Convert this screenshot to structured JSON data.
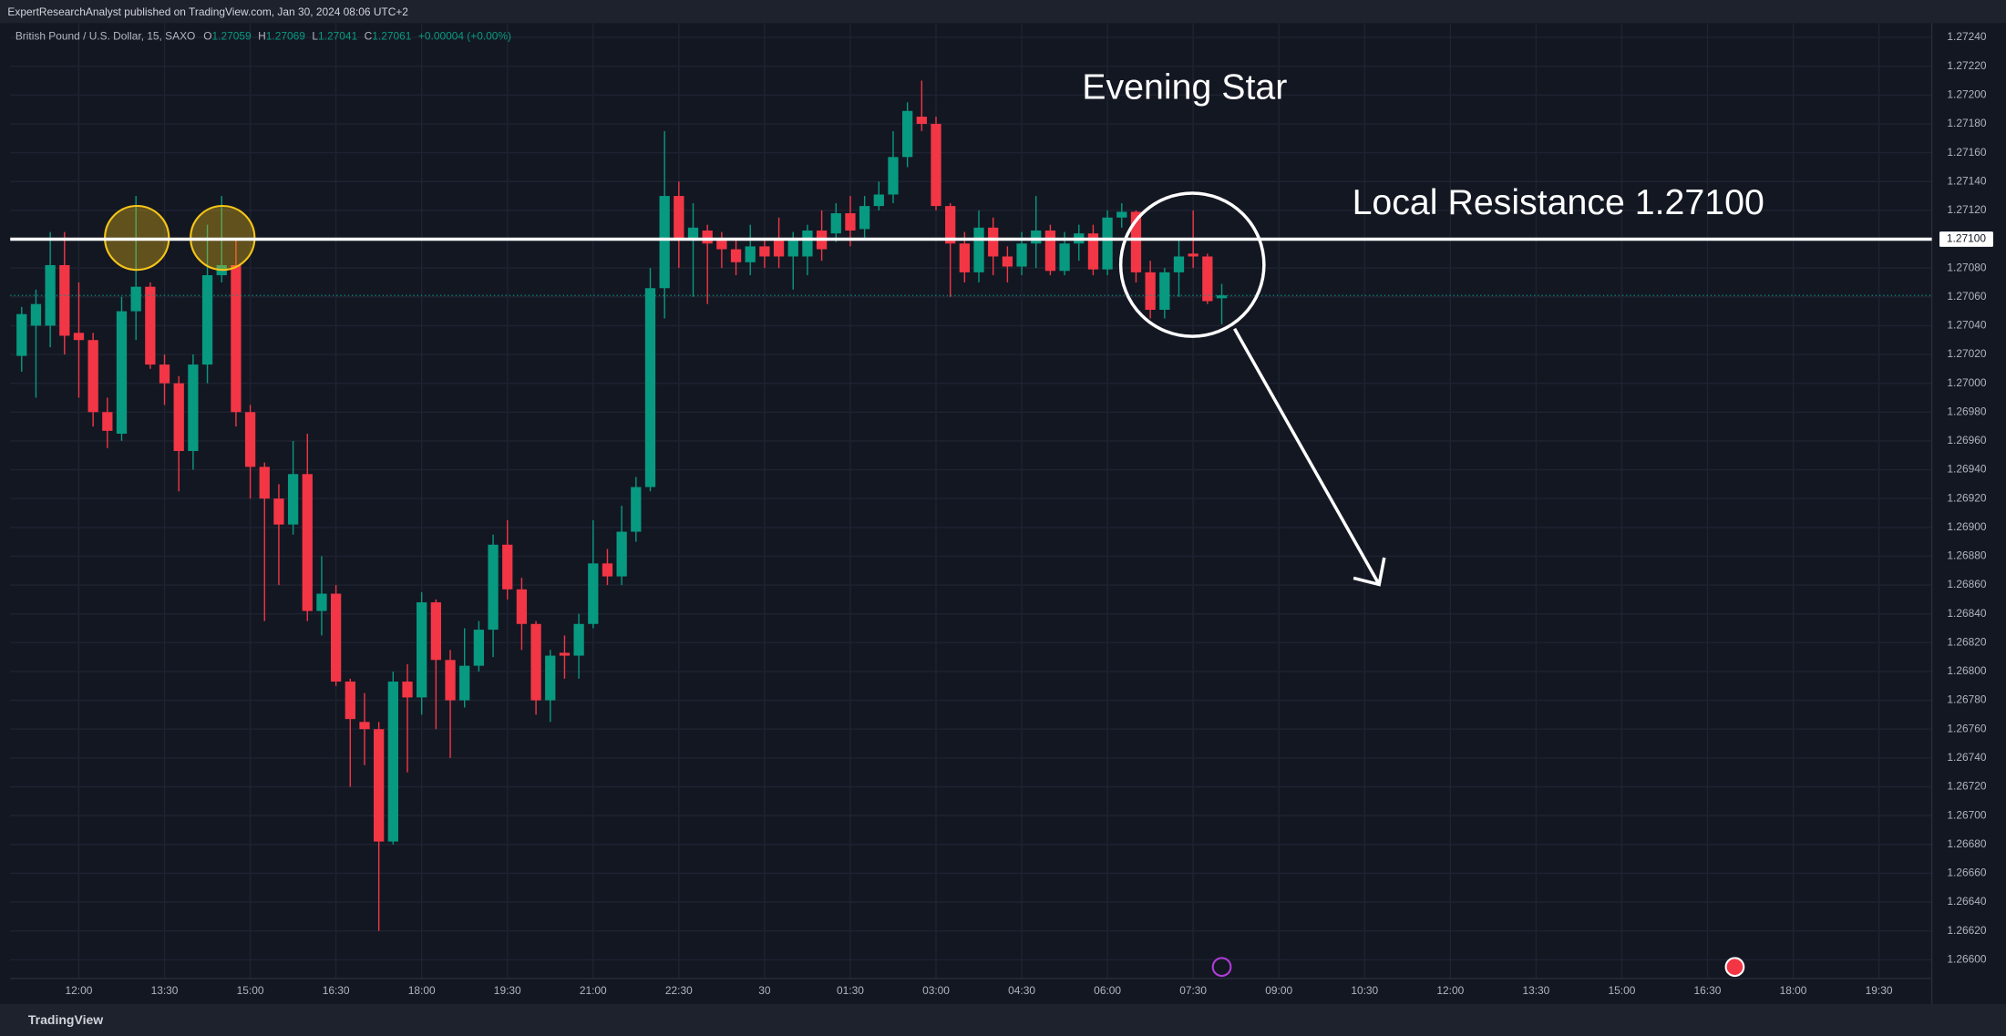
{
  "chart_data": {
    "type": "candlestick",
    "publisher": "ExpertResearchAnalyst published on TradingView.com, Jan 30, 2024 08:06 UTC+2",
    "symbol": "British Pound / U.S. Dollar, 15, SAXO",
    "ohlc_letters": [
      "O",
      "H",
      "L",
      "C"
    ],
    "change": "+0.00004 (+0.00%)",
    "brand": "TradingView",
    "annotations": [
      "Evening Star",
      "Local Resistance 1.27100"
    ],
    "up_color": "#089981",
    "down_color": "#f23645",
    "grid": true,
    "resistance": {
      "value": 1.271,
      "label": "1.27100"
    },
    "open": [
      1.27019,
      1.2704,
      1.2704,
      1.27082,
      1.27035,
      1.2703,
      1.2698,
      1.26965,
      1.2705,
      1.27067,
      1.27013,
      1.27,
      1.26953,
      1.27013,
      1.27075,
      1.27082,
      1.2698,
      1.26942,
      1.2692,
      1.26902,
      1.26937,
      1.26842,
      1.26854,
      1.26793,
      1.26765,
      1.2676,
      1.26682,
      1.26793,
      1.26782,
      1.26848,
      1.26808,
      1.2678,
      1.26804,
      1.26829,
      1.26888,
      1.26857,
      1.26833,
      1.2678,
      1.26813,
      1.26811,
      1.26833,
      1.26875,
      1.26866,
      1.26897,
      1.26928,
      1.27066,
      1.2713,
      1.27099,
      1.27106,
      1.27099,
      1.27093,
      1.27084,
      1.27095,
      1.27099,
      1.27088,
      1.27088,
      1.27106,
      1.27104,
      1.27118,
      1.27107,
      1.27123,
      1.27131,
      1.27157,
      1.27185,
      1.2718,
      1.27123,
      1.27097,
      1.27077,
      1.27108,
      1.27088,
      1.27081,
      1.27097,
      1.27106,
      1.27078,
      1.27097,
      1.27104,
      1.27079,
      1.27115,
      1.27119,
      1.27077,
      1.27051,
      1.27077,
      1.2709,
      1.27088,
      1.27059
    ],
    "high": [
      1.27053,
      1.27065,
      1.27105,
      1.27105,
      1.2707,
      1.27035,
      1.2699,
      1.2706,
      1.2713,
      1.2707,
      1.2702,
      1.27005,
      1.2702,
      1.2711,
      1.2713,
      1.271,
      1.26985,
      1.26945,
      1.2693,
      1.2696,
      1.26965,
      1.2688,
      1.2686,
      1.26795,
      1.26785,
      1.26765,
      1.268,
      1.26805,
      1.26855,
      1.2685,
      1.26815,
      1.2683,
      1.26835,
      1.26895,
      1.26905,
      1.26865,
      1.26835,
      1.26815,
      1.26825,
      1.2684,
      1.26905,
      1.26885,
      1.26915,
      1.26935,
      1.2708,
      1.27175,
      1.2714,
      1.27125,
      1.2711,
      1.27105,
      1.271,
      1.2711,
      1.271,
      1.27115,
      1.27105,
      1.2711,
      1.2712,
      1.27125,
      1.2713,
      1.2713,
      1.2714,
      1.27175,
      1.27195,
      1.2721,
      1.27185,
      1.27125,
      1.27105,
      1.2712,
      1.27115,
      1.27095,
      1.27105,
      1.2713,
      1.2711,
      1.27105,
      1.2711,
      1.2711,
      1.2712,
      1.27125,
      1.2712,
      1.27085,
      1.2708,
      1.271,
      1.2712,
      1.2709,
      1.27069
    ],
    "low": [
      1.27008,
      1.2699,
      1.27025,
      1.2702,
      1.2699,
      1.2697,
      1.26955,
      1.2696,
      1.2703,
      1.2701,
      1.26985,
      1.26925,
      1.2694,
      1.27,
      1.2707,
      1.2697,
      1.2692,
      1.26835,
      1.2686,
      1.26895,
      1.26835,
      1.26825,
      1.2679,
      1.2672,
      1.26735,
      1.2662,
      1.2668,
      1.2673,
      1.2677,
      1.2676,
      1.2674,
      1.26775,
      1.268,
      1.2681,
      1.2685,
      1.26815,
      1.2677,
      1.26765,
      1.26795,
      1.26795,
      1.2683,
      1.2686,
      1.2686,
      1.2689,
      1.26925,
      1.27045,
      1.2708,
      1.2706,
      1.27055,
      1.2708,
      1.27075,
      1.27075,
      1.2708,
      1.2708,
      1.27065,
      1.27075,
      1.27085,
      1.27098,
      1.27095,
      1.271,
      1.2712,
      1.27125,
      1.2715,
      1.27175,
      1.2712,
      1.2706,
      1.2707,
      1.2707,
      1.27075,
      1.2707,
      1.27075,
      1.2708,
      1.27075,
      1.27075,
      1.27085,
      1.27075,
      1.27075,
      1.27108,
      1.2707,
      1.27045,
      1.27045,
      1.2706,
      1.2708,
      1.27055,
      1.27041
    ],
    "close": [
      1.27048,
      1.27055,
      1.27082,
      1.27033,
      1.2703,
      1.2698,
      1.26967,
      1.2705,
      1.27067,
      1.27013,
      1.27,
      1.26953,
      1.27013,
      1.27075,
      1.27082,
      1.2698,
      1.26942,
      1.2692,
      1.26902,
      1.26937,
      1.26842,
      1.26854,
      1.26793,
      1.26767,
      1.2676,
      1.26682,
      1.26793,
      1.26782,
      1.26848,
      1.26808,
      1.2678,
      1.26804,
      1.26829,
      1.26888,
      1.26857,
      1.26833,
      1.2678,
      1.26811,
      1.26811,
      1.26833,
      1.26875,
      1.26866,
      1.26897,
      1.26928,
      1.27066,
      1.2713,
      1.27099,
      1.27108,
      1.27097,
      1.27093,
      1.27084,
      1.27095,
      1.27088,
      1.27088,
      1.27099,
      1.27106,
      1.27093,
      1.27118,
      1.27106,
      1.27123,
      1.27131,
      1.27157,
      1.27189,
      1.2718,
      1.27123,
      1.27097,
      1.27077,
      1.27108,
      1.27088,
      1.27081,
      1.27097,
      1.27106,
      1.27078,
      1.27097,
      1.27104,
      1.27079,
      1.27115,
      1.27119,
      1.27077,
      1.27051,
      1.27077,
      1.27088,
      1.27088,
      1.27057,
      1.27061
    ],
    "xlim": [
      -0.8,
      133.7
    ],
    "xticks": [
      {
        "value": 4,
        "label": "12:00"
      },
      {
        "value": 10,
        "label": "13:30"
      },
      {
        "value": 16,
        "label": "15:00"
      },
      {
        "value": 22,
        "label": "16:30"
      },
      {
        "value": 28,
        "label": "18:00"
      },
      {
        "value": 34,
        "label": "19:30"
      },
      {
        "value": 40,
        "label": "21:00"
      },
      {
        "value": 46,
        "label": "22:30"
      },
      {
        "value": 52,
        "label": "30"
      },
      {
        "value": 58,
        "label": "01:30"
      },
      {
        "value": 64,
        "label": "03:00"
      },
      {
        "value": 70,
        "label": "04:30"
      },
      {
        "value": 76,
        "label": "06:00"
      },
      {
        "value": 82,
        "label": "07:30"
      },
      {
        "value": 88,
        "label": "09:00"
      },
      {
        "value": 94,
        "label": "10:30"
      },
      {
        "value": 100,
        "label": "12:00"
      },
      {
        "value": 106,
        "label": "13:30"
      },
      {
        "value": 112,
        "label": "15:00"
      },
      {
        "value": 118,
        "label": "16:30"
      },
      {
        "value": 124,
        "label": "18:00"
      },
      {
        "value": 130,
        "label": "19:30"
      }
    ],
    "ylim": [
      1.26587,
      1.2725
    ],
    "yticks": [
      {
        "value": 1.266,
        "label": "1.26600"
      },
      {
        "value": 1.2662,
        "label": "1.26620"
      },
      {
        "value": 1.2664,
        "label": "1.26640"
      },
      {
        "value": 1.2666,
        "label": "1.26660"
      },
      {
        "value": 1.2668,
        "label": "1.26680"
      },
      {
        "value": 1.267,
        "label": "1.26700"
      },
      {
        "value": 1.2672,
        "label": "1.26720"
      },
      {
        "value": 1.2674,
        "label": "1.26740"
      },
      {
        "value": 1.2676,
        "label": "1.26760"
      },
      {
        "value": 1.2678,
        "label": "1.26780"
      },
      {
        "value": 1.268,
        "label": "1.26800"
      },
      {
        "value": 1.2682,
        "label": "1.26820"
      },
      {
        "value": 1.2684,
        "label": "1.26840"
      },
      {
        "value": 1.2686,
        "label": "1.26860"
      },
      {
        "value": 1.2688,
        "label": "1.26880"
      },
      {
        "value": 1.269,
        "label": "1.26900"
      },
      {
        "value": 1.2692,
        "label": "1.26920"
      },
      {
        "value": 1.2694,
        "label": "1.26940"
      },
      {
        "value": 1.2696,
        "label": "1.26960"
      },
      {
        "value": 1.2698,
        "label": "1.26980"
      },
      {
        "value": 1.27,
        "label": "1.27000"
      },
      {
        "value": 1.2702,
        "label": "1.27020"
      },
      {
        "value": 1.2704,
        "label": "1.27040"
      },
      {
        "value": 1.2706,
        "label": "1.27060"
      },
      {
        "value": 1.2708,
        "label": "1.27080"
      },
      {
        "value": 1.271,
        "label": "1.27100"
      },
      {
        "value": 1.2712,
        "label": "1.27120"
      },
      {
        "value": 1.2714,
        "label": "1.27140"
      },
      {
        "value": 1.2716,
        "label": "1.27160"
      },
      {
        "value": 1.2718,
        "label": "1.27180"
      },
      {
        "value": 1.272,
        "label": "1.27200"
      },
      {
        "value": 1.2722,
        "label": "1.27220"
      },
      {
        "value": 1.2724,
        "label": "1.27240"
      }
    ]
  }
}
